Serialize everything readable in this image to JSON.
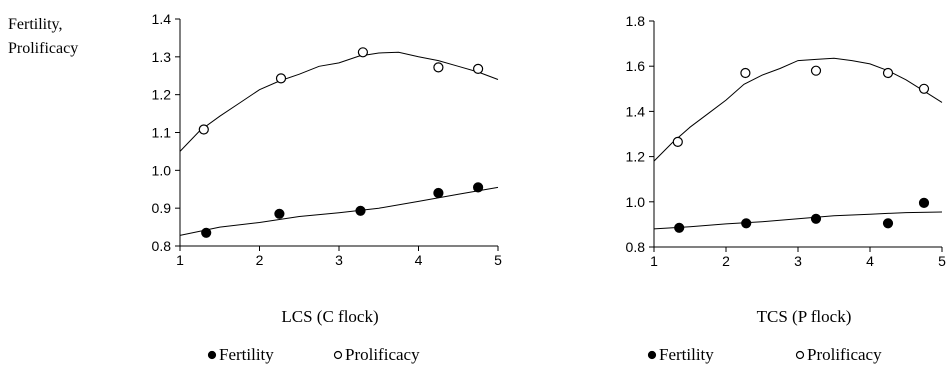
{
  "chart_data": [
    {
      "type": "scatter",
      "ylabel_lines": [
        "Fertility,",
        "Prolificacy"
      ],
      "xlabel": "LCS (C flock)",
      "xlim": [
        1,
        5
      ],
      "ylim": [
        0.8,
        1.4
      ],
      "x_ticks": [
        "1",
        "2",
        "3",
        "4",
        "5"
      ],
      "y_ticks": [
        "0.8",
        "0.9",
        "1.0",
        "1.1",
        "1.2",
        "1.3",
        "1.4"
      ],
      "legend": [
        "Fertility",
        "Prolificacy"
      ],
      "legend_position": "bottom",
      "series": [
        {
          "name": "Fertility",
          "marker": "filled-circle",
          "points": [
            [
              1.33,
              0.835
            ],
            [
              2.25,
              0.885
            ],
            [
              3.27,
              0.893
            ],
            [
              4.25,
              0.94
            ],
            [
              4.75,
              0.955
            ]
          ],
          "trend": [
            [
              1,
              0.828
            ],
            [
              1.5,
              0.85
            ],
            [
              2,
              0.862
            ],
            [
              2.5,
              0.878
            ],
            [
              3,
              0.888
            ],
            [
              3.5,
              0.9
            ],
            [
              4,
              0.918
            ],
            [
              4.5,
              0.937
            ],
            [
              5,
              0.955
            ]
          ]
        },
        {
          "name": "Prolificacy",
          "marker": "open-circle",
          "points": [
            [
              1.3,
              1.108
            ],
            [
              2.27,
              1.243
            ],
            [
              3.3,
              1.312
            ],
            [
              4.25,
              1.272
            ],
            [
              4.75,
              1.268
            ]
          ],
          "trend": [
            [
              1,
              1.05
            ],
            [
              1.25,
              1.105
            ],
            [
              1.5,
              1.143
            ],
            [
              1.75,
              1.178
            ],
            [
              2,
              1.213
            ],
            [
              2.25,
              1.236
            ],
            [
              2.5,
              1.254
            ],
            [
              2.75,
              1.275
            ],
            [
              3,
              1.284
            ],
            [
              3.25,
              1.302
            ],
            [
              3.5,
              1.31
            ],
            [
              3.75,
              1.312
            ],
            [
              4,
              1.3
            ],
            [
              4.25,
              1.29
            ],
            [
              4.5,
              1.275
            ],
            [
              4.75,
              1.26
            ],
            [
              5,
              1.24
            ]
          ]
        }
      ]
    },
    {
      "type": "scatter",
      "xlabel": "TCS (P flock)",
      "xlim": [
        1,
        5
      ],
      "ylim": [
        0.8,
        1.8
      ],
      "x_ticks": [
        "1",
        "2",
        "3",
        "4",
        "5"
      ],
      "y_ticks": [
        "0.8",
        "1.0",
        "1.2",
        "1.4",
        "1.6",
        "1.8"
      ],
      "legend": [
        "Fertility",
        "Prolificacy"
      ],
      "legend_position": "bottom",
      "series": [
        {
          "name": "Fertility",
          "marker": "filled-circle",
          "points": [
            [
              1.35,
              0.885
            ],
            [
              2.28,
              0.905
            ],
            [
              3.25,
              0.925
            ],
            [
              4.25,
              0.905
            ],
            [
              4.75,
              0.995
            ]
          ],
          "trend": [
            [
              1,
              0.88
            ],
            [
              1.5,
              0.89
            ],
            [
              2,
              0.902
            ],
            [
              2.5,
              0.912
            ],
            [
              3,
              0.925
            ],
            [
              3.5,
              0.938
            ],
            [
              4,
              0.945
            ],
            [
              4.5,
              0.952
            ],
            [
              5,
              0.955
            ]
          ]
        },
        {
          "name": "Prolificacy",
          "marker": "open-circle",
          "points": [
            [
              1.33,
              1.265
            ],
            [
              2.27,
              1.57
            ],
            [
              3.25,
              1.58
            ],
            [
              4.25,
              1.57
            ],
            [
              4.75,
              1.5
            ]
          ],
          "trend": [
            [
              1,
              1.18
            ],
            [
              1.25,
              1.26
            ],
            [
              1.5,
              1.33
            ],
            [
              1.75,
              1.39
            ],
            [
              2,
              1.45
            ],
            [
              2.25,
              1.52
            ],
            [
              2.5,
              1.56
            ],
            [
              2.75,
              1.59
            ],
            [
              3,
              1.625
            ],
            [
              3.25,
              1.63
            ],
            [
              3.5,
              1.635
            ],
            [
              3.75,
              1.625
            ],
            [
              4,
              1.61
            ],
            [
              4.25,
              1.58
            ],
            [
              4.5,
              1.54
            ],
            [
              4.75,
              1.49
            ],
            [
              5,
              1.44
            ]
          ]
        }
      ]
    }
  ]
}
